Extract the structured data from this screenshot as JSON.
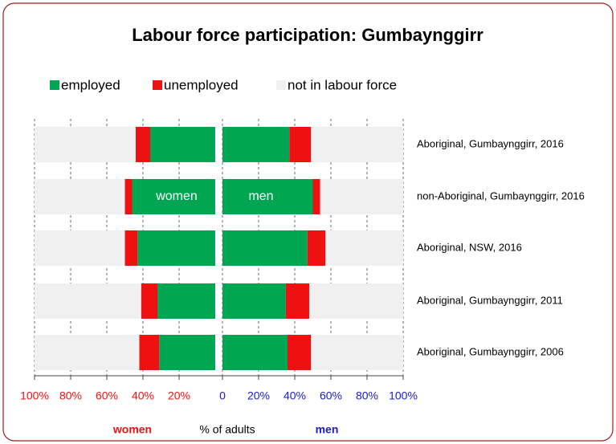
{
  "chart_data": {
    "type": "butterfly",
    "title": "Labour force participation: Gumbaynggirr",
    "categories": [
      "Aboriginal, Gumbaynggirr, 2016",
      "non-Aboriginal, Gumbaynggirr, 2016",
      "Aboriginal, NSW, 2016",
      "Aboriginal, Gumbaynggirr, 2011",
      "Aboriginal, Gumbaynggirr, 2006"
    ],
    "series": [
      {
        "name": "employed",
        "color": "#00a651",
        "women": [
          36,
          46,
          43,
          32,
          31
        ],
        "men": [
          37,
          50,
          47,
          35,
          36
        ]
      },
      {
        "name": "unemployed",
        "color": "#ee1111",
        "women": [
          8,
          4,
          7,
          9,
          11
        ],
        "men": [
          12,
          4,
          10,
          13,
          13
        ]
      },
      {
        "name": "not in labour force",
        "color": "#f0f0f0",
        "women": [
          56,
          50,
          50,
          59,
          58
        ],
        "men": [
          51,
          46,
          43,
          52,
          51
        ]
      }
    ],
    "side_labels": [
      "women",
      "men"
    ],
    "women_ticks": [
      {
        "value": 100,
        "label": "100%"
      },
      {
        "value": 80,
        "label": "80%"
      },
      {
        "value": 60,
        "label": "60%"
      },
      {
        "value": 40,
        "label": "40%"
      },
      {
        "value": 20,
        "label": "20%"
      }
    ],
    "men_ticks": [
      0,
      {
        "value": 20,
        "label": "20%"
      },
      {
        "value": 40,
        "label": "40%"
      },
      {
        "value": 60,
        "label": "60%"
      },
      {
        "value": 80,
        "label": "80%"
      },
      {
        "value": 100,
        "label": "100%"
      }
    ],
    "xlim": [
      0,
      100
    ],
    "x_label": "% of adults",
    "women_label": "women",
    "men_label": "men",
    "women_tick_color": "#ee1111",
    "men_tick_color": "#1a1acc",
    "grid": true
  }
}
